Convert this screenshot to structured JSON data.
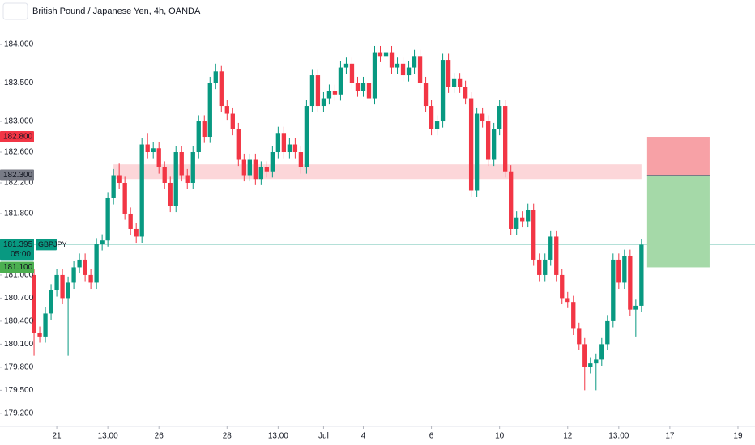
{
  "header": {
    "title": "British Pound / Japanese Yen, 4h, OANDA"
  },
  "chart_data": {
    "type": "candlestick",
    "series": [
      {
        "name": "GBPJPY",
        "up_color": "#089981",
        "down_color": "#f23645",
        "open": [
          181.0,
          180.25,
          180.2,
          180.5,
          180.8,
          181.0,
          180.7,
          180.9,
          181.1,
          181.2,
          181.0,
          180.9,
          181.4,
          181.45,
          182.0,
          182.3,
          182.2,
          181.8,
          181.6,
          181.5,
          182.7,
          182.6,
          182.65,
          182.4,
          182.2,
          181.9,
          182.6,
          182.3,
          182.2,
          182.6,
          183.0,
          182.8,
          183.5,
          183.65,
          183.2,
          183.1,
          182.9,
          182.5,
          182.3,
          182.5,
          182.25,
          182.4,
          182.35,
          182.6,
          182.85,
          182.6,
          182.7,
          182.6,
          182.4,
          183.2,
          183.6,
          183.2,
          183.3,
          183.4,
          183.35,
          183.7,
          183.75,
          183.5,
          183.4,
          183.5,
          183.3,
          183.9,
          183.85,
          183.9,
          183.7,
          183.75,
          183.6,
          183.7,
          183.85,
          183.5,
          183.2,
          182.9,
          183.0,
          183.8,
          183.45,
          183.55,
          183.45,
          183.3,
          182.1,
          183.1,
          183.0,
          182.5,
          182.9,
          183.2,
          182.35,
          181.6,
          181.75,
          181.7,
          181.85,
          181.2,
          181.0,
          181.2,
          181.5,
          181.0,
          180.7,
          180.65,
          180.3,
          180.1,
          179.8,
          179.85,
          179.9,
          180.1,
          180.4,
          181.2,
          180.9,
          181.25,
          180.55,
          180.6
        ],
        "high": [
          181.08,
          180.33,
          180.58,
          180.88,
          181.08,
          181.08,
          180.98,
          181.18,
          181.28,
          181.28,
          181.08,
          181.48,
          181.53,
          182.08,
          182.38,
          182.45,
          182.28,
          181.88,
          181.68,
          182.78,
          182.85,
          182.73,
          182.73,
          182.48,
          182.28,
          182.68,
          182.68,
          182.38,
          182.68,
          183.08,
          183.08,
          183.58,
          183.75,
          183.73,
          183.28,
          183.18,
          182.98,
          182.58,
          182.58,
          182.58,
          182.48,
          182.48,
          182.68,
          182.93,
          182.93,
          182.78,
          182.78,
          182.68,
          183.28,
          183.68,
          183.68,
          183.38,
          183.48,
          183.48,
          183.78,
          183.83,
          183.83,
          183.58,
          183.58,
          183.58,
          183.98,
          183.98,
          183.98,
          183.98,
          183.83,
          183.83,
          183.78,
          183.93,
          183.93,
          183.58,
          183.28,
          183.08,
          183.88,
          183.88,
          183.63,
          183.63,
          183.53,
          183.38,
          183.18,
          183.18,
          183.08,
          182.98,
          183.28,
          183.28,
          182.43,
          181.83,
          181.83,
          181.93,
          181.93,
          181.28,
          181.28,
          181.58,
          181.58,
          181.08,
          180.78,
          180.73,
          180.38,
          180.18,
          179.93,
          179.98,
          180.18,
          180.48,
          181.28,
          181.28,
          181.33,
          181.33,
          180.68,
          181.47
        ],
        "low": [
          179.95,
          180.12,
          180.12,
          180.42,
          180.72,
          180.62,
          179.95,
          180.82,
          181.02,
          180.92,
          180.82,
          180.82,
          181.32,
          181.37,
          181.92,
          182.12,
          181.72,
          181.52,
          181.42,
          181.42,
          182.52,
          182.52,
          182.32,
          182.12,
          181.82,
          181.82,
          182.22,
          182.12,
          182.12,
          182.52,
          182.72,
          182.72,
          183.42,
          183.12,
          183.02,
          182.82,
          182.42,
          182.22,
          182.22,
          182.17,
          182.17,
          182.27,
          182.27,
          182.52,
          182.52,
          182.52,
          182.52,
          182.32,
          182.32,
          183.12,
          183.12,
          183.12,
          183.22,
          183.27,
          183.27,
          183.62,
          183.42,
          183.32,
          183.32,
          183.22,
          183.22,
          183.77,
          183.77,
          183.62,
          183.62,
          183.52,
          183.52,
          183.62,
          183.42,
          183.12,
          182.82,
          182.82,
          182.92,
          183.37,
          183.37,
          183.37,
          183.22,
          182.02,
          182.02,
          182.92,
          182.42,
          182.42,
          182.82,
          182.27,
          181.52,
          181.52,
          181.62,
          181.62,
          181.12,
          180.92,
          180.92,
          181.12,
          180.92,
          180.62,
          180.57,
          180.22,
          180.02,
          179.5,
          179.72,
          179.5,
          179.82,
          180.02,
          180.32,
          180.82,
          180.82,
          180.47,
          180.2,
          180.52
        ],
        "close": [
          180.25,
          180.2,
          180.5,
          180.8,
          181.0,
          180.7,
          180.9,
          181.1,
          181.2,
          181.0,
          180.9,
          181.4,
          181.45,
          182.0,
          182.3,
          182.2,
          181.8,
          181.6,
          181.5,
          182.7,
          182.6,
          182.65,
          182.4,
          182.2,
          181.9,
          182.6,
          182.3,
          182.2,
          182.6,
          183.0,
          182.8,
          183.5,
          183.65,
          183.2,
          183.1,
          182.9,
          182.5,
          182.3,
          182.5,
          182.25,
          182.4,
          182.35,
          182.6,
          182.85,
          182.6,
          182.7,
          182.6,
          182.4,
          183.2,
          183.6,
          183.2,
          183.3,
          183.4,
          183.35,
          183.7,
          183.75,
          183.5,
          183.4,
          183.5,
          183.3,
          183.9,
          183.85,
          183.9,
          183.7,
          183.75,
          183.6,
          183.7,
          183.85,
          183.5,
          183.2,
          182.9,
          183.0,
          183.8,
          183.45,
          183.55,
          183.45,
          183.3,
          182.1,
          183.1,
          183.0,
          182.5,
          182.9,
          183.2,
          182.35,
          181.6,
          181.75,
          181.7,
          181.85,
          181.2,
          181.0,
          181.2,
          181.5,
          181.0,
          180.7,
          180.65,
          180.3,
          180.1,
          179.8,
          179.85,
          179.9,
          180.1,
          180.4,
          181.2,
          180.9,
          181.25,
          180.55,
          180.6,
          181.395
        ]
      }
    ],
    "xlim": [
      -6,
      127
    ],
    "xticks": [
      {
        "value": 4,
        "label": "21"
      },
      {
        "value": 13,
        "label": "13:00"
      },
      {
        "value": 22,
        "label": "26"
      },
      {
        "value": 34,
        "label": "28"
      },
      {
        "value": 43,
        "label": "13:00"
      },
      {
        "value": 51,
        "label": "Jul"
      },
      {
        "value": 58,
        "label": "4"
      },
      {
        "value": 70,
        "label": "6"
      },
      {
        "value": 82,
        "label": "10"
      },
      {
        "value": 94,
        "label": "12"
      },
      {
        "value": 103,
        "label": "13:00"
      },
      {
        "value": 112,
        "label": "17"
      },
      {
        "value": 124,
        "label": "19"
      }
    ],
    "ylim": [
      179.03,
      184.58
    ],
    "yticks": [
      {
        "value": 184,
        "label": "184.000"
      },
      {
        "value": 183.5,
        "label": "183.500"
      },
      {
        "value": 183,
        "label": "183.000"
      },
      {
        "value": 182.6,
        "label": "182.600"
      },
      {
        "value": 182.2,
        "label": "182.200"
      },
      {
        "value": 181.8,
        "label": "181.800"
      },
      {
        "value": 181,
        "label": "181.000"
      },
      {
        "value": 180.7,
        "label": "180.700"
      },
      {
        "value": 180.4,
        "label": "180.400"
      },
      {
        "value": 180.1,
        "label": "180.100"
      },
      {
        "value": 179.8,
        "label": "179.800"
      },
      {
        "value": 179.5,
        "label": "179.500"
      },
      {
        "value": 179.2,
        "label": "179.200"
      }
    ],
    "zone": {
      "x": [
        14,
        107
      ],
      "y": [
        182.25,
        182.44
      ],
      "color": "#fcd6d9"
    },
    "position": {
      "x": [
        108,
        119
      ],
      "stop": 182.8,
      "entry": 182.3,
      "target": 181.1,
      "stop_color": "#f7a1a6",
      "target_color": "#a5d9a8"
    },
    "price_labels": [
      {
        "value": 182.8,
        "label": "182.800",
        "color": "#f23645"
      },
      {
        "value": 182.3,
        "label": "182.300",
        "color": "#787b86"
      },
      {
        "value": 181.395,
        "label": "181.395",
        "color": "#089981",
        "symbol": "GBPJPY",
        "countdown": "05:00"
      },
      {
        "value": 181.1,
        "label": "181.100",
        "color": "#4caf50"
      }
    ]
  }
}
